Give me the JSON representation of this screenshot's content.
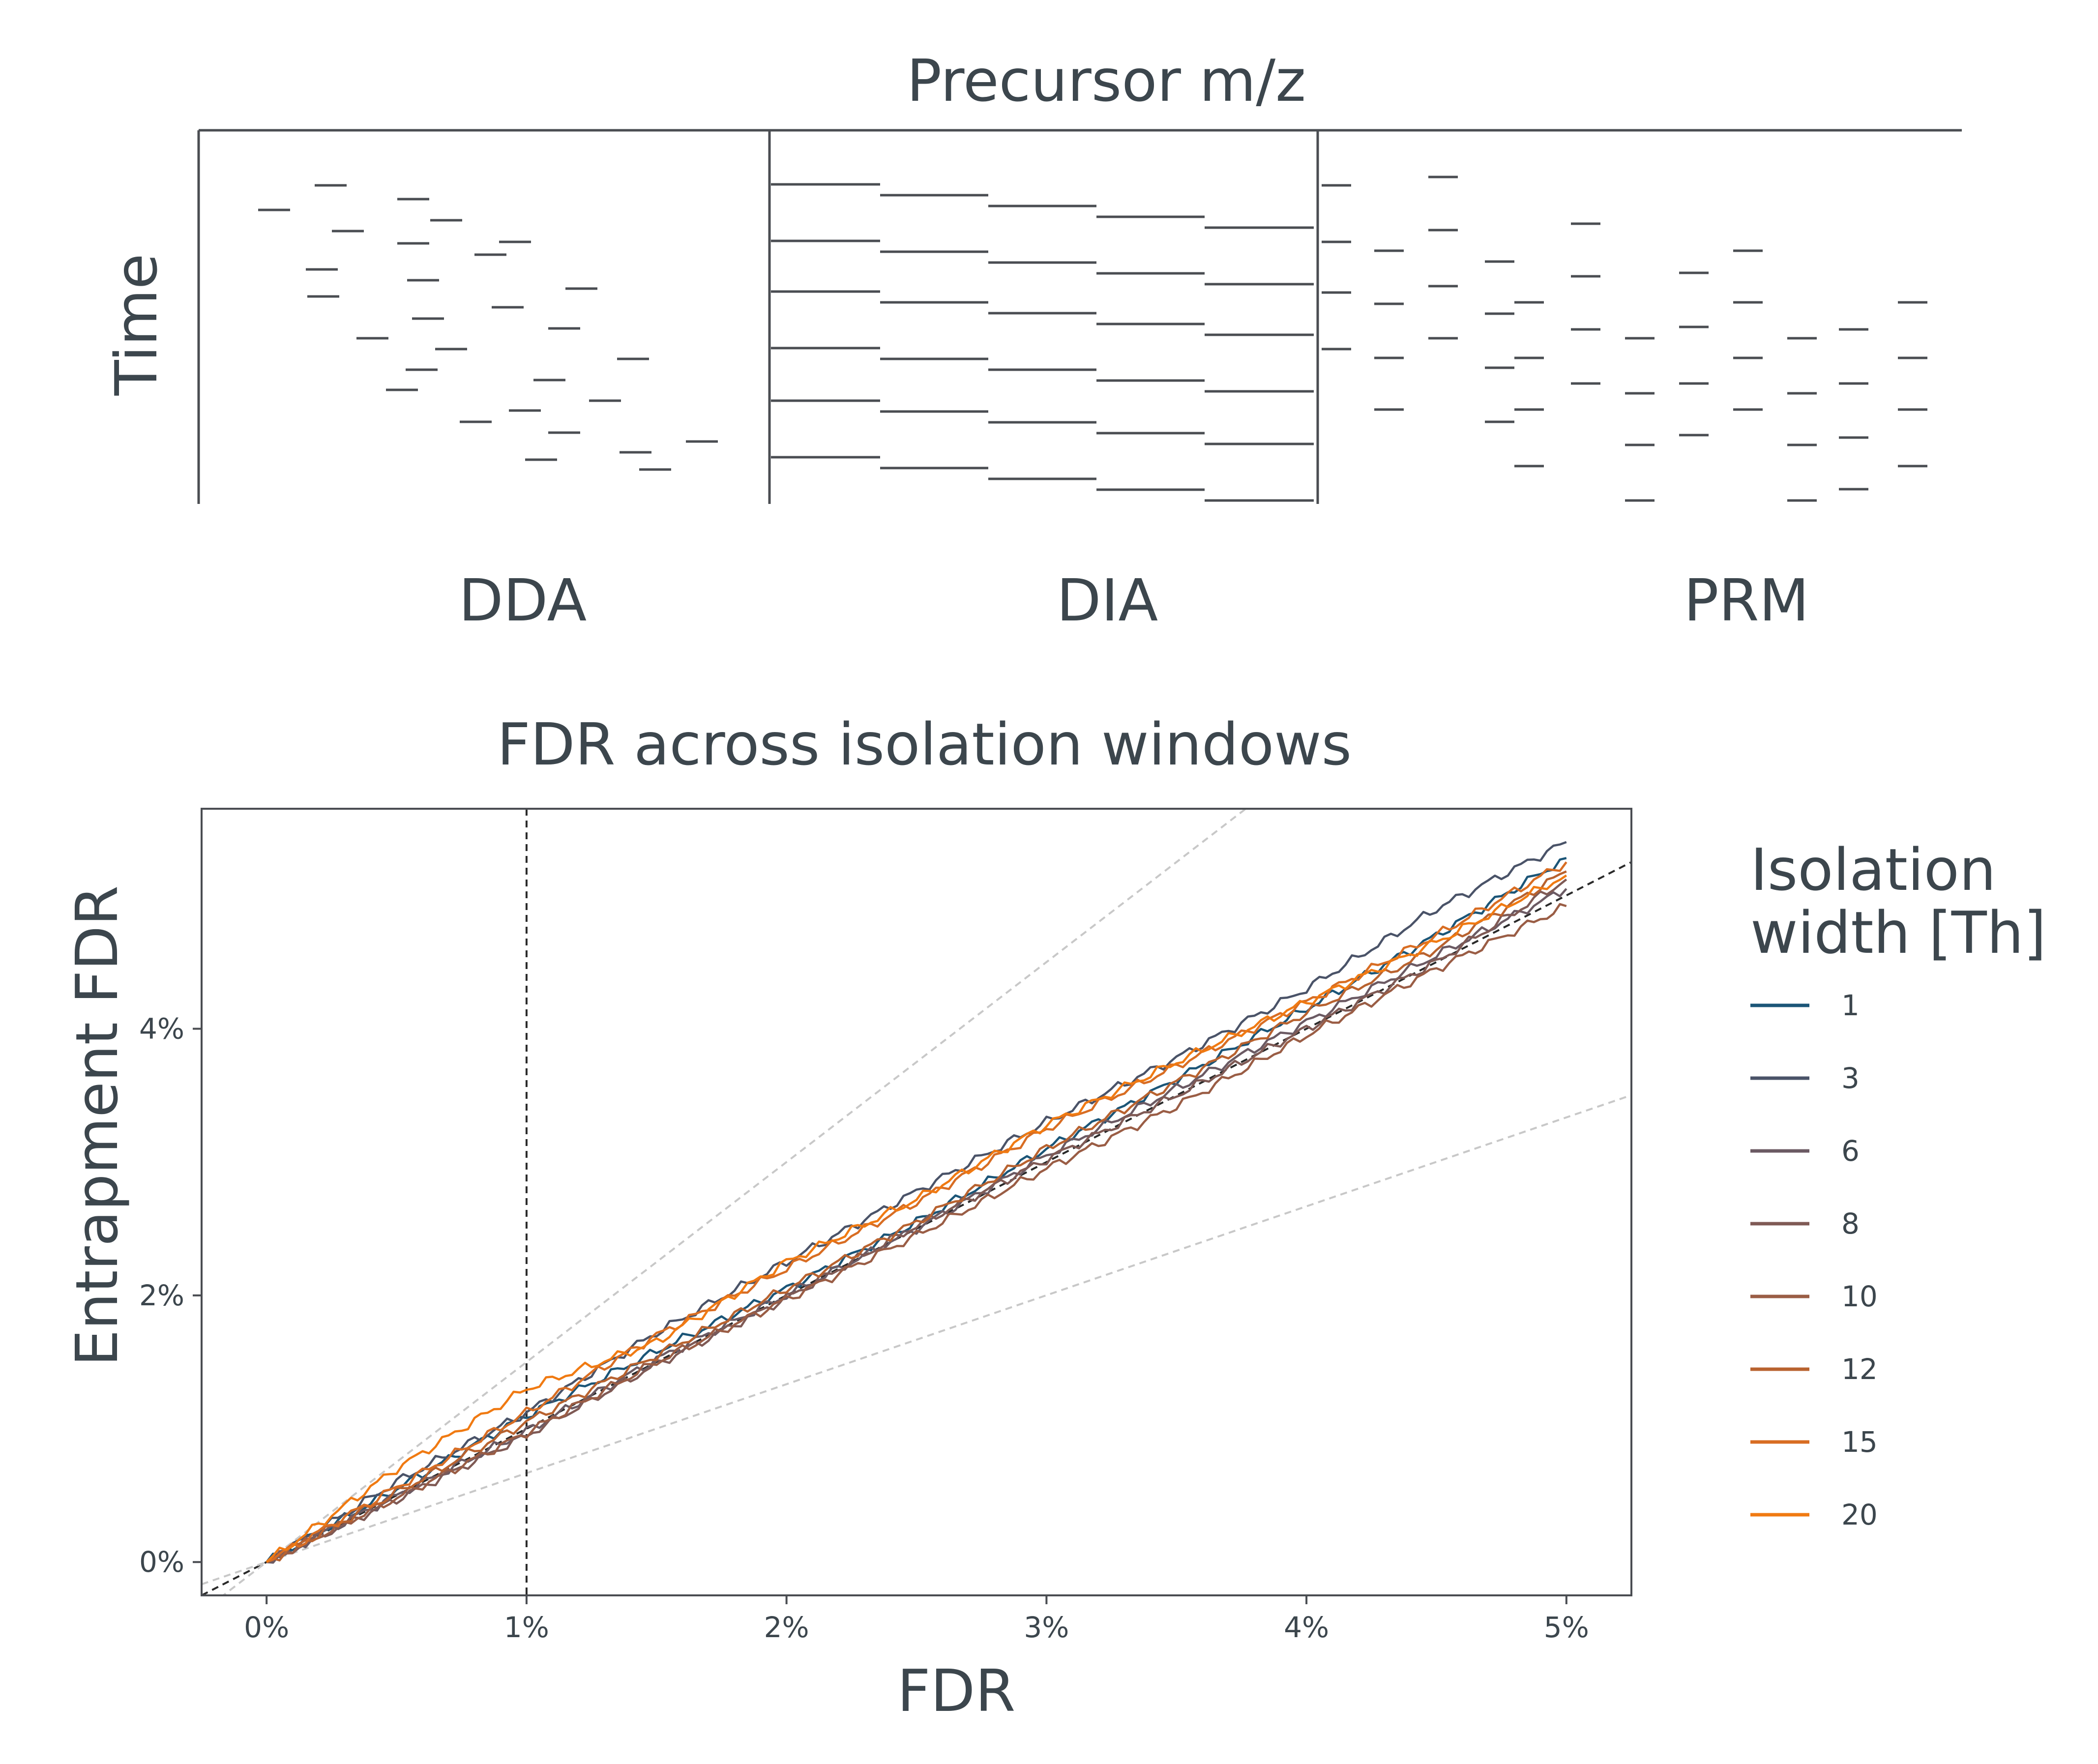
{
  "schematic": {
    "title": "Precursor m/z",
    "ylabel": "Time",
    "panels": [
      "DDA",
      "DIA",
      "PRM"
    ]
  },
  "colors": {
    "text": "#3c464d",
    "axis": "#4a4d52",
    "reference_gray": "#c8c8c8",
    "diagonal": "#2a2a2a"
  },
  "chart_data": {
    "type": "line",
    "title": "FDR across isolation windows",
    "xlabel": "FDR",
    "ylabel": "Entrapment FDR",
    "xlim": [
      -0.25,
      5.25
    ],
    "ylim": [
      -0.25,
      5.65
    ],
    "x_ticks": [
      0,
      1,
      2,
      3,
      4,
      5
    ],
    "x_tick_labels": [
      "0%",
      "1%",
      "2%",
      "3%",
      "4%",
      "5%"
    ],
    "y_ticks": [
      0,
      2,
      4
    ],
    "y_tick_labels": [
      "0%",
      "2%",
      "4%"
    ],
    "reference_lines": [
      {
        "name": "identity",
        "slope": 1,
        "style": "dashed",
        "color": "#2a2a2a"
      },
      {
        "name": "upper",
        "slope": 1.5,
        "style": "dashed",
        "color": "#c8c8c8"
      },
      {
        "name": "lower",
        "slope": 0.667,
        "style": "dashed",
        "color": "#c8c8c8"
      },
      {
        "name": "fdr-1pct",
        "x": 1,
        "style": "dashed",
        "color": "#2a2a2a"
      }
    ],
    "legend_title": "Isolation\nwidth [Th]",
    "legend_position": "right",
    "series": [
      {
        "name": "1",
        "color": "#1b5577",
        "x": [
          0,
          0.5,
          1,
          1.5,
          2,
          2.5,
          3,
          3.5,
          4,
          4.5,
          5
        ],
        "values": [
          0,
          0.55,
          1.1,
          1.58,
          2.05,
          2.55,
          3.1,
          3.62,
          4.15,
          4.7,
          5.28
        ]
      },
      {
        "name": "3",
        "color": "#4a5368",
        "x": [
          0,
          0.5,
          1,
          1.5,
          2,
          2.5,
          3,
          3.5,
          4,
          4.5,
          5
        ],
        "values": [
          0,
          0.6,
          1.12,
          1.72,
          2.25,
          2.78,
          3.3,
          3.78,
          4.3,
          4.9,
          5.4
        ]
      },
      {
        "name": "6",
        "color": "#6b5a63",
        "x": [
          0,
          0.5,
          1,
          1.5,
          2,
          2.5,
          3,
          3.5,
          4,
          4.5,
          5
        ],
        "values": [
          0,
          0.5,
          0.98,
          1.52,
          2.0,
          2.5,
          3.05,
          3.55,
          4.05,
          4.55,
          5.05
        ]
      },
      {
        "name": "8",
        "color": "#7f5a55",
        "x": [
          0,
          0.5,
          1,
          1.5,
          2,
          2.5,
          3,
          3.5,
          4,
          4.5,
          5
        ],
        "values": [
          0,
          0.47,
          0.95,
          1.48,
          1.98,
          2.52,
          3.02,
          3.5,
          4.0,
          4.5,
          5.12
        ]
      },
      {
        "name": "10",
        "color": "#9a5d45",
        "x": [
          0,
          0.5,
          1,
          1.5,
          2,
          2.5,
          3,
          3.5,
          4,
          4.5,
          5
        ],
        "values": [
          0,
          0.48,
          0.97,
          1.5,
          1.97,
          2.45,
          2.95,
          3.42,
          3.95,
          4.45,
          4.92
        ]
      },
      {
        "name": "12",
        "color": "#b8622f",
        "x": [
          0,
          0.5,
          1,
          1.5,
          2,
          2.5,
          3,
          3.5,
          4,
          4.5,
          5
        ],
        "values": [
          0,
          0.52,
          1.05,
          1.55,
          2.05,
          2.55,
          3.1,
          3.6,
          4.12,
          4.6,
          5.18
        ]
      },
      {
        "name": "15",
        "color": "#d86d23",
        "x": [
          0,
          0.5,
          1,
          1.5,
          2,
          2.5,
          3,
          3.5,
          4,
          4.5,
          5
        ],
        "values": [
          0,
          0.56,
          1.12,
          1.7,
          2.2,
          2.7,
          3.25,
          3.72,
          4.2,
          4.7,
          5.25
        ]
      },
      {
        "name": "20",
        "color": "#f07a12",
        "x": [
          0,
          0.5,
          1,
          1.5,
          2,
          2.5,
          3,
          3.5,
          4,
          4.5,
          5
        ],
        "values": [
          0,
          0.7,
          1.3,
          1.65,
          2.25,
          2.72,
          3.28,
          3.75,
          4.2,
          4.65,
          5.15
        ]
      }
    ]
  }
}
